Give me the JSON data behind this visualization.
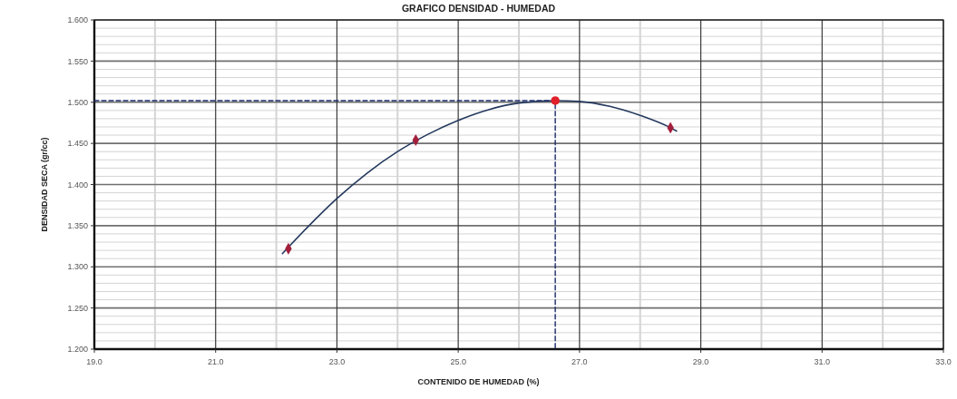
{
  "chart_data": {
    "type": "scatter",
    "title": "GRAFICO DENSIDAD - HUMEDAD",
    "xlabel": "CONTENIDO DE HUMEDAD (%)",
    "ylabel": "DENSIDAD SECA (gr/cc)",
    "xlim": [
      19,
      33
    ],
    "xticks": [
      {
        "value": 19,
        "label": "19.0"
      },
      {
        "value": 20,
        "label": null
      },
      {
        "value": 21,
        "label": "21.0"
      },
      {
        "value": 22,
        "label": null
      },
      {
        "value": 23,
        "label": "23.0"
      },
      {
        "value": 24,
        "label": null
      },
      {
        "value": 25,
        "label": "25.0"
      },
      {
        "value": 26,
        "label": null
      },
      {
        "value": 27,
        "label": "27.0"
      },
      {
        "value": 28,
        "label": null
      },
      {
        "value": 29,
        "label": "29.0"
      },
      {
        "value": 30,
        "label": null
      },
      {
        "value": 31,
        "label": "31.0"
      },
      {
        "value": 32,
        "label": null
      },
      {
        "value": 33,
        "label": "33.0"
      }
    ],
    "ylim": [
      1.2,
      1.6
    ],
    "yticks": [
      {
        "value": 1.2,
        "label": "1.200"
      },
      {
        "value": 1.21,
        "label": null
      },
      {
        "value": 1.22,
        "label": null
      },
      {
        "value": 1.23,
        "label": null
      },
      {
        "value": 1.24,
        "label": null
      },
      {
        "value": 1.25,
        "label": "1.250"
      },
      {
        "value": 1.26,
        "label": null
      },
      {
        "value": 1.27,
        "label": null
      },
      {
        "value": 1.28,
        "label": null
      },
      {
        "value": 1.29,
        "label": null
      },
      {
        "value": 1.3,
        "label": "1.300"
      },
      {
        "value": 1.31,
        "label": null
      },
      {
        "value": 1.32,
        "label": null
      },
      {
        "value": 1.33,
        "label": null
      },
      {
        "value": 1.34,
        "label": null
      },
      {
        "value": 1.35,
        "label": "1.350"
      },
      {
        "value": 1.36,
        "label": null
      },
      {
        "value": 1.37,
        "label": null
      },
      {
        "value": 1.38,
        "label": null
      },
      {
        "value": 1.39,
        "label": null
      },
      {
        "value": 1.4,
        "label": "1.400"
      },
      {
        "value": 1.41,
        "label": null
      },
      {
        "value": 1.42,
        "label": null
      },
      {
        "value": 1.43,
        "label": null
      },
      {
        "value": 1.44,
        "label": null
      },
      {
        "value": 1.45,
        "label": "1.450"
      },
      {
        "value": 1.46,
        "label": null
      },
      {
        "value": 1.47,
        "label": null
      },
      {
        "value": 1.48,
        "label": null
      },
      {
        "value": 1.49,
        "label": null
      },
      {
        "value": 1.5,
        "label": "1.500"
      },
      {
        "value": 1.51,
        "label": null
      },
      {
        "value": 1.52,
        "label": null
      },
      {
        "value": 1.53,
        "label": null
      },
      {
        "value": 1.54,
        "label": null
      },
      {
        "value": 1.55,
        "label": "1.550"
      },
      {
        "value": 1.56,
        "label": null
      },
      {
        "value": 1.57,
        "label": null
      },
      {
        "value": 1.58,
        "label": null
      },
      {
        "value": 1.59,
        "label": null
      },
      {
        "value": 1.6,
        "label": "1.600"
      }
    ],
    "grid": true,
    "series": [
      {
        "type": "line",
        "color": "#24395e",
        "marker": "none",
        "line_style": "solid",
        "x": [
          22.1,
          22.5,
          23.0,
          23.5,
          24.0,
          24.5,
          25.0,
          25.5,
          26.0,
          26.6,
          27.0,
          27.5,
          28.0,
          28.5,
          28.6
        ],
        "values": [
          1.316,
          1.347,
          1.383,
          1.414,
          1.44,
          1.461,
          1.478,
          1.491,
          1.499,
          1.502,
          1.501,
          1.495,
          1.484,
          1.469,
          1.465
        ]
      },
      {
        "type": "line",
        "color": "#1a2a6a",
        "marker": "none",
        "line_style": "dashed",
        "x": [
          19,
          26.6,
          26.6
        ],
        "values": [
          1.502,
          1.502,
          1.2
        ]
      },
      {
        "color": "#a3203c",
        "marker": "diamond",
        "x": [
          22.2,
          24.3,
          28.5
        ],
        "values": [
          1.322,
          1.454,
          1.469
        ]
      },
      {
        "color": "#e0202a",
        "marker": "circle",
        "x": [
          26.6
        ],
        "values": [
          1.502
        ]
      }
    ]
  }
}
